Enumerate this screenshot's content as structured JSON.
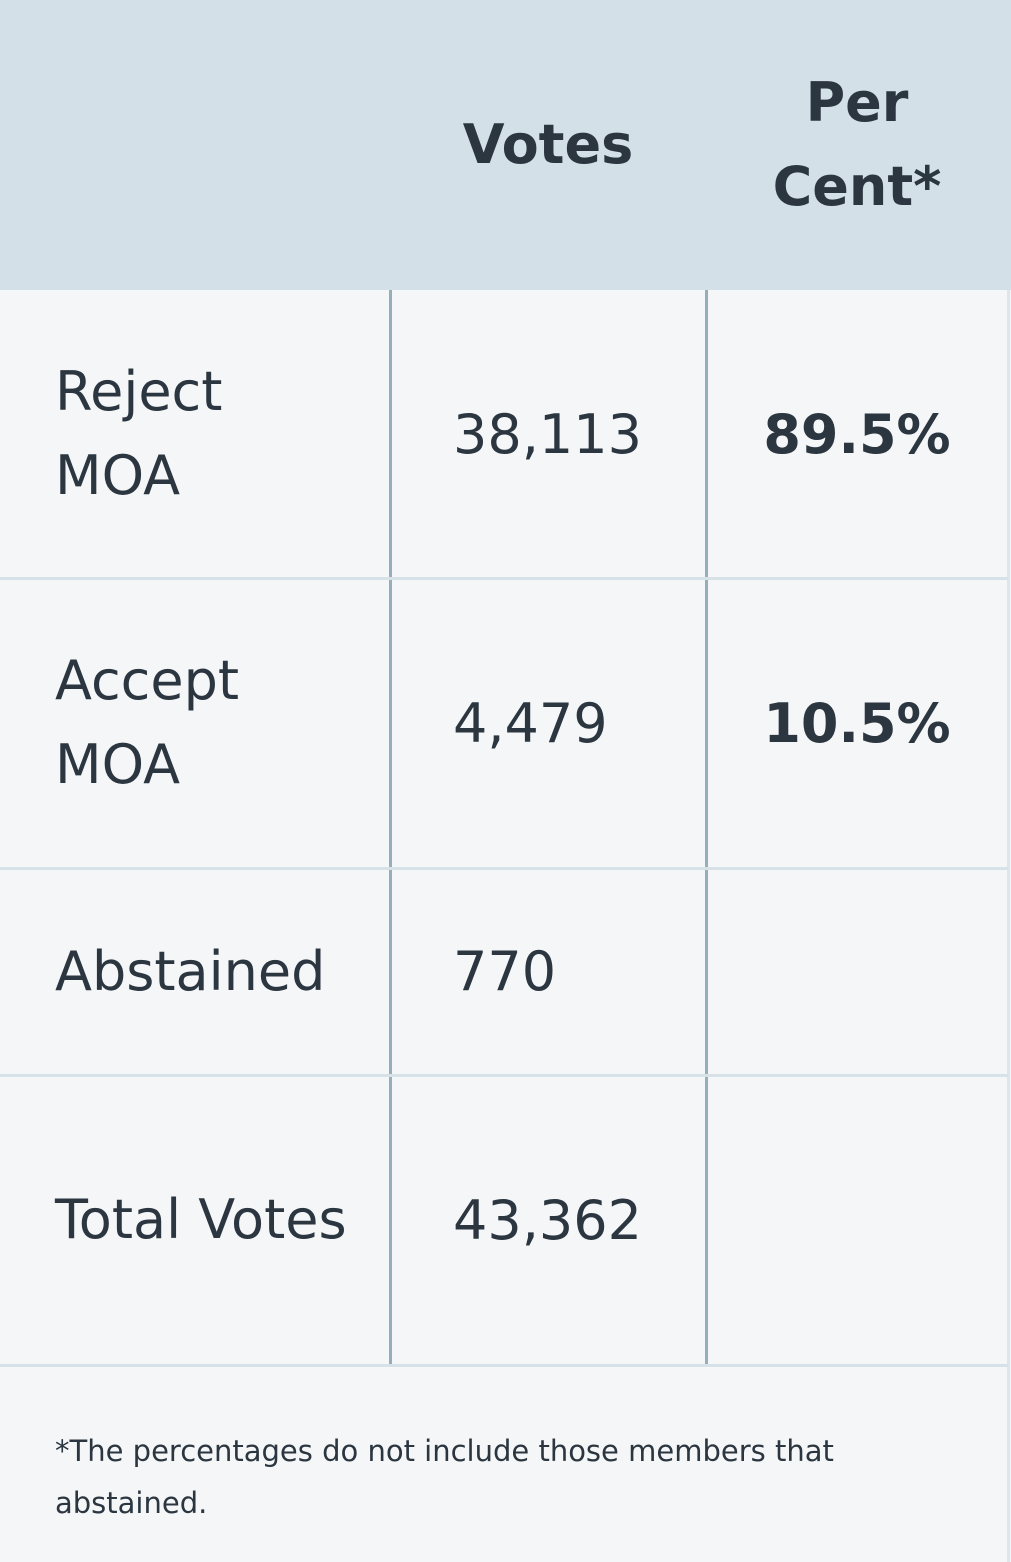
{
  "table": {
    "header": [
      "Votes",
      "Per Cent*"
    ],
    "rows": [
      [
        "Reject MOA",
        "38,113",
        "89.5%"
      ],
      [
        "Accept MOA",
        "4,479",
        "10.5%"
      ],
      [
        "Abstained",
        "770"
      ],
      [
        "Total Votes",
        "43,362"
      ]
    ],
    "footnote": "*The percentages do not include those members that abstained."
  }
}
